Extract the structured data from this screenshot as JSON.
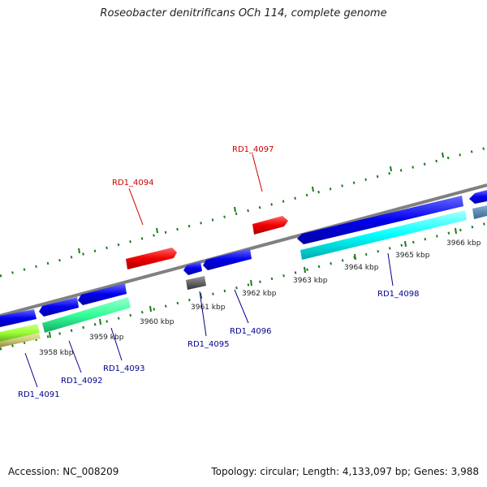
{
  "title": "Roseobacter denitrificans OCh 114, complete genome",
  "footer": {
    "accession": "Accession: NC_008209",
    "summary": "Topology: circular; Length: 4,133,097 bp; Genes: 3,988"
  },
  "kbp_labels": [
    "3958 kbp",
    "3959 kbp",
    "3960 kbp",
    "3961 kbp",
    "3962 kbp",
    "3963 kbp",
    "3964 kbp",
    "3965 kbp",
    "3966 kbp"
  ],
  "genes": [
    {
      "label": "RD1_4091",
      "color": "#00008b"
    },
    {
      "label": "RD1_4092",
      "color": "#00008b"
    },
    {
      "label": "RD1_4093",
      "color": "#00008b"
    },
    {
      "label": "RD1_4094",
      "color": "#cc0000"
    },
    {
      "label": "RD1_4095",
      "color": "#00008b"
    },
    {
      "label": "RD1_4096",
      "color": "#00008b"
    },
    {
      "label": "RD1_4097",
      "color": "#cc0000"
    },
    {
      "label": "RD1_4098",
      "color": "#00008b"
    }
  ],
  "colors": {
    "backbone": "#808080",
    "ticks": "#1a7a1a",
    "forward_gene": "#ff0000",
    "reverse_gene": "#0000ee",
    "cyan_gene": "#00ffff",
    "teal_gene": "#33ff99",
    "lime_gene": "#99ff33",
    "olive_gene": "#cccc77",
    "gray_gene": "#666666",
    "steel_gene": "#5a8ab0"
  }
}
